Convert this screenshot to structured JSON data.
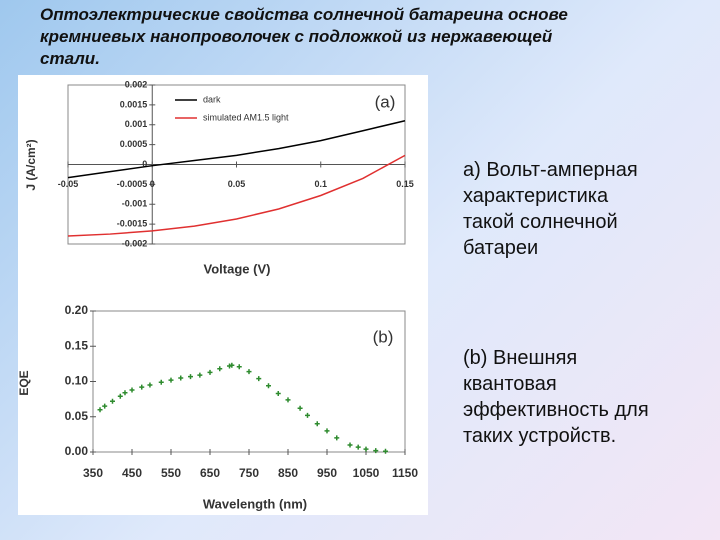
{
  "slide": {
    "title": "Оптоэлектрические свойства солнечной батареина основе кремниевых нанопроволочек с подложкой из нержавеющей стали.",
    "captions": [
      "а) Вольт-амперная характеристика такой солнечной батареи",
      "(b) Внешняя квантовая эффективность для таких устройств."
    ]
  },
  "chart_data": [
    {
      "type": "line",
      "annotation": "(a)",
      "x_label": "Voltage (V)",
      "y_label": "J (A/cm²)",
      "x": [
        -0.05,
        -0.025,
        0,
        0.025,
        0.05,
        0.075,
        0.1,
        0.125,
        0.15
      ],
      "series": [
        {
          "name": "dark",
          "color": "#000000",
          "values": [
            -0.00033,
            -0.00018,
            -3e-05,
            0.0001,
            0.00023,
            0.0004,
            0.0006,
            0.00085,
            0.0011
          ]
        },
        {
          "name": "simulated AM1.5 light",
          "color": "#e03030",
          "values": [
            -0.0018,
            -0.00175,
            -0.00167,
            -0.00155,
            -0.00137,
            -0.00112,
            -0.00078,
            -0.00035,
            0.00023
          ]
        }
      ],
      "xlim": [
        -0.05,
        0.15
      ],
      "xticks": [
        -0.05,
        0,
        0.05,
        0.1,
        0.15
      ],
      "ylim": [
        -0.002,
        0.002
      ],
      "yticks": [
        -0.002,
        -0.0015,
        -0.001,
        -0.0005,
        0,
        0.0005,
        0.001,
        0.0015,
        0.002
      ]
    },
    {
      "type": "scatter",
      "annotation": "(b)",
      "x_label": "Wavelength (nm)",
      "y_label": "EQE",
      "color": "#2e8b2e",
      "x": [
        368,
        380,
        400,
        420,
        432,
        450,
        475,
        496,
        525,
        550,
        575,
        600,
        624,
        650,
        675,
        700,
        706,
        725,
        750,
        775,
        800,
        825,
        850,
        881,
        900,
        925,
        950,
        975,
        1009,
        1030,
        1050,
        1075,
        1100
      ],
      "values": [
        0.06,
        0.065,
        0.072,
        0.079,
        0.084,
        0.088,
        0.092,
        0.095,
        0.099,
        0.102,
        0.105,
        0.107,
        0.109,
        0.113,
        0.118,
        0.122,
        0.123,
        0.121,
        0.114,
        0.104,
        0.094,
        0.083,
        0.074,
        0.062,
        0.052,
        0.04,
        0.03,
        0.02,
        0.01,
        0.007,
        0.004,
        0.002,
        0.001
      ],
      "xlim": [
        350,
        1150
      ],
      "xticks": [
        350,
        450,
        550,
        650,
        750,
        850,
        950,
        1050,
        1150
      ],
      "ylim": [
        0,
        0.2
      ],
      "yticks": [
        {
          "value": 0,
          "label": "0.00"
        },
        {
          "value": 0.05,
          "label": "0.05"
        },
        {
          "value": 0.1,
          "label": "0.10"
        },
        {
          "value": 0.15,
          "label": "0.15"
        },
        {
          "value": 0.2,
          "label": "0.20"
        }
      ]
    }
  ]
}
